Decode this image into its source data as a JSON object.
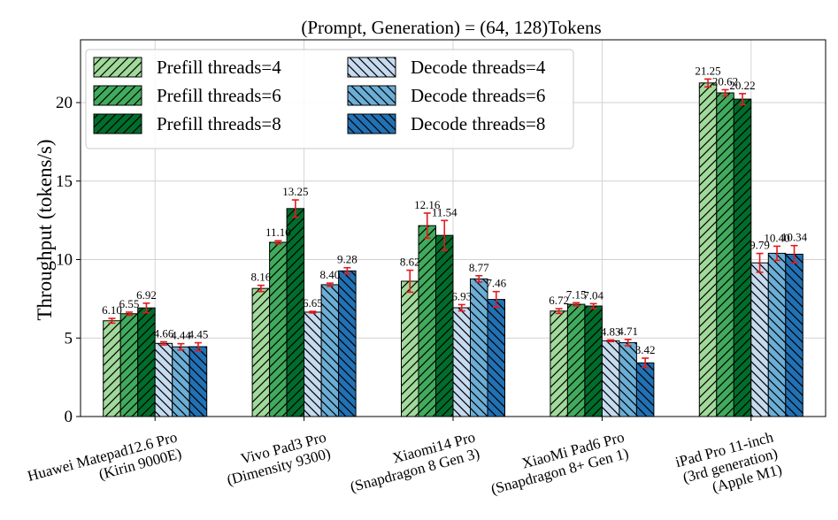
{
  "chart_data": {
    "type": "bar",
    "title": "(Prompt, Generation) = (64, 128)Tokens",
    "xlabel": "",
    "ylabel": "Throughput (tokens/s)",
    "ylim": [
      0,
      24
    ],
    "yticks": [
      "0",
      "5",
      "10",
      "15",
      "20"
    ],
    "grid": true,
    "legend_position": "top-left",
    "categories": [
      [
        "Huawei Matepad12.6 Pro",
        "(Kirin 9000E)"
      ],
      [
        "Vivo Pad3 Pro",
        "(Dimensity 9300)"
      ],
      [
        "Xiaomi14 Pro",
        "(Snapdragon 8 Gen 3)"
      ],
      [
        "XiaoMi Pad6 Pro",
        "(Snapdragon 8+ Gen 1)"
      ],
      [
        "iPad Pro 11-inch",
        "(3rd generation)",
        "(Apple M1)"
      ]
    ],
    "series": [
      {
        "name": "Prefill threads=4",
        "color": "#a1d99b",
        "hatch": "forward",
        "values": [
          6.1,
          8.16,
          8.62,
          6.72,
          21.25
        ],
        "labels": [
          "6.10",
          "8.16",
          "8.62",
          "6.72",
          "21.25"
        ],
        "errors": [
          0.15,
          0.2,
          0.7,
          0.15,
          0.25
        ]
      },
      {
        "name": "Prefill threads=6",
        "color": "#41ab5d",
        "hatch": "forward",
        "values": [
          6.55,
          11.1,
          12.16,
          7.15,
          20.62
        ],
        "labels": [
          "6.55",
          "11.10",
          "12.16",
          "7.15",
          "20.62"
        ],
        "errors": [
          0.1,
          0.1,
          0.8,
          0.1,
          0.2
        ]
      },
      {
        "name": "Prefill threads=8",
        "color": "#006d2c",
        "hatch": "forward",
        "values": [
          6.92,
          13.25,
          11.54,
          7.04,
          20.22
        ],
        "labels": [
          "6.92",
          "13.25",
          "11.54",
          "7.04",
          "20.22"
        ],
        "errors": [
          0.3,
          0.55,
          0.95,
          0.15,
          0.35
        ]
      },
      {
        "name": "Decode threads=4",
        "color": "#c6dbef",
        "hatch": "back",
        "values": [
          4.66,
          6.65,
          6.93,
          4.83,
          9.79
        ],
        "labels": [
          "4.66",
          "6.65",
          "6.93",
          "4.83",
          "9.79"
        ],
        "errors": [
          0.1,
          0.05,
          0.2,
          0.05,
          0.6
        ]
      },
      {
        "name": "Decode threads=6",
        "color": "#6baed6",
        "hatch": "back",
        "values": [
          4.44,
          8.4,
          8.77,
          4.71,
          10.4
        ],
        "labels": [
          "4.44",
          "8.40",
          "8.77",
          "4.71",
          "10.40"
        ],
        "errors": [
          0.2,
          0.1,
          0.2,
          0.2,
          0.45
        ]
      },
      {
        "name": "Decode threads=8",
        "color": "#2171b5",
        "hatch": "back",
        "values": [
          4.45,
          9.28,
          7.46,
          3.42,
          10.34
        ],
        "labels": [
          "4.45",
          "9.28",
          "7.46",
          "3.42",
          "10.34"
        ],
        "errors": [
          0.25,
          0.2,
          0.5,
          0.3,
          0.55
        ]
      }
    ]
  }
}
